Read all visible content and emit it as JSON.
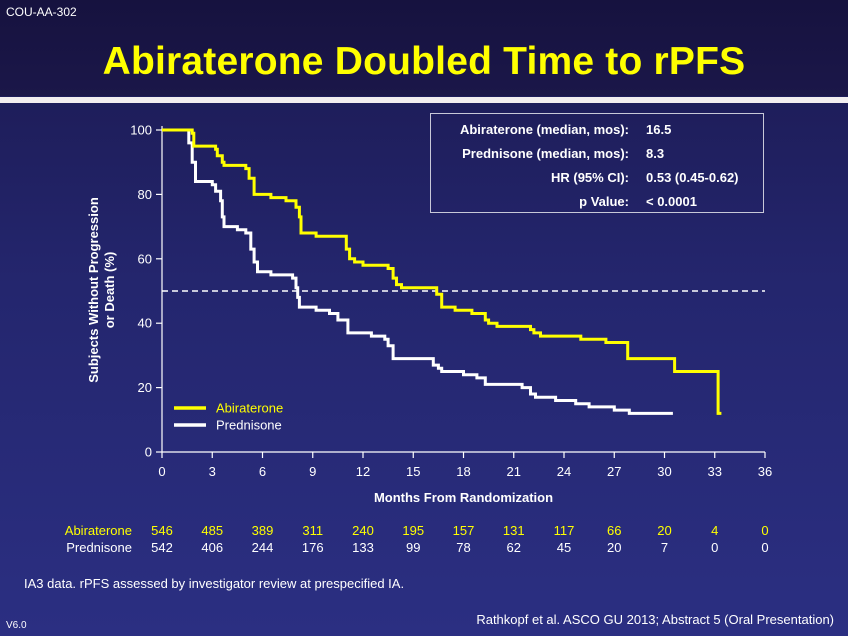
{
  "header": {
    "study_code": "COU-AA-302",
    "title": "Abiraterone Doubled Time to rPFS"
  },
  "stats": [
    {
      "label": "Abiraterone (median, mos):",
      "value": "16.5"
    },
    {
      "label": "Prednisone (median, mos):",
      "value": "8.3"
    },
    {
      "label": "HR (95% CI):",
      "value": "0.53 (0.45-0.62)"
    },
    {
      "label": "p Value:",
      "value": "< 0.0001"
    }
  ],
  "chart_data": {
    "type": "line",
    "title": "",
    "xlabel": "Months From Randomization",
    "ylabel_line1": "Subjects Without Progression",
    "ylabel_line2": "or Death (%)",
    "xlim": [
      0,
      36
    ],
    "ylim": [
      0,
      100
    ],
    "x_ticks": [
      0,
      3,
      6,
      9,
      12,
      15,
      18,
      21,
      24,
      27,
      30,
      33,
      36
    ],
    "y_ticks": [
      0,
      20,
      40,
      60,
      80,
      100
    ],
    "reference_line_y": 50,
    "legend_position": "bottom-left",
    "series": [
      {
        "name": "Abiraterone",
        "color": "#ffff00",
        "step": true,
        "points": [
          [
            0,
            100
          ],
          [
            1.8,
            100
          ],
          [
            1.8,
            99
          ],
          [
            1.9,
            95
          ],
          [
            3.2,
            94
          ],
          [
            3.3,
            92
          ],
          [
            3.6,
            90
          ],
          [
            3.7,
            89
          ],
          [
            5,
            88
          ],
          [
            5.2,
            85
          ],
          [
            5.5,
            80
          ],
          [
            6.5,
            79
          ],
          [
            7.4,
            78
          ],
          [
            8,
            76
          ],
          [
            8.2,
            73
          ],
          [
            8.3,
            68
          ],
          [
            9.2,
            67
          ],
          [
            11,
            66
          ],
          [
            11,
            63
          ],
          [
            11.2,
            60
          ],
          [
            11.5,
            59
          ],
          [
            12,
            58
          ],
          [
            13.5,
            57
          ],
          [
            13.8,
            54
          ],
          [
            14,
            52
          ],
          [
            14.3,
            51
          ],
          [
            16.3,
            51
          ],
          [
            16.4,
            49
          ],
          [
            16.7,
            45
          ],
          [
            17.5,
            44
          ],
          [
            18.5,
            43
          ],
          [
            19.3,
            41
          ],
          [
            19.5,
            40
          ],
          [
            20,
            39
          ],
          [
            22,
            38
          ],
          [
            22.2,
            37
          ],
          [
            22.6,
            36
          ],
          [
            25,
            35
          ],
          [
            26.5,
            34
          ],
          [
            27.7,
            34
          ],
          [
            27.8,
            29
          ],
          [
            30.5,
            29
          ],
          [
            30.6,
            25
          ],
          [
            33.2,
            25
          ],
          [
            33.2,
            12
          ],
          [
            33.4,
            12
          ]
        ]
      },
      {
        "name": "Prednisone",
        "color": "#ffffff",
        "step": true,
        "points": [
          [
            0,
            100
          ],
          [
            1.5,
            100
          ],
          [
            1.6,
            96
          ],
          [
            1.8,
            90
          ],
          [
            2,
            84
          ],
          [
            3,
            83
          ],
          [
            3.2,
            81
          ],
          [
            3.5,
            78
          ],
          [
            3.6,
            73
          ],
          [
            3.7,
            70
          ],
          [
            4.5,
            69
          ],
          [
            5,
            68
          ],
          [
            5.3,
            63
          ],
          [
            5.5,
            59
          ],
          [
            5.7,
            56
          ],
          [
            6.5,
            55
          ],
          [
            7.8,
            54
          ],
          [
            8,
            51
          ],
          [
            8.1,
            48
          ],
          [
            8.2,
            45
          ],
          [
            9.2,
            44
          ],
          [
            10,
            43
          ],
          [
            10.5,
            41
          ],
          [
            11.1,
            37
          ],
          [
            12.5,
            36
          ],
          [
            13.3,
            35
          ],
          [
            13.5,
            33
          ],
          [
            13.8,
            29
          ],
          [
            16,
            29
          ],
          [
            16.2,
            27
          ],
          [
            16.5,
            26
          ],
          [
            16.7,
            25
          ],
          [
            18,
            24
          ],
          [
            18.8,
            23
          ],
          [
            19.3,
            21
          ],
          [
            21.5,
            20
          ],
          [
            22,
            18
          ],
          [
            22.3,
            17
          ],
          [
            23.5,
            16
          ],
          [
            24.7,
            15
          ],
          [
            25.5,
            14
          ],
          [
            27,
            13
          ],
          [
            27.9,
            12
          ],
          [
            30.5,
            12
          ]
        ]
      }
    ]
  },
  "risk_table": {
    "times": [
      0,
      3,
      6,
      9,
      12,
      15,
      18,
      21,
      24,
      27,
      30,
      33,
      36
    ],
    "rows": [
      {
        "label": "Abiraterone",
        "color": "#ffff00",
        "values": [
          "546",
          "485",
          "389",
          "311",
          "240",
          "195",
          "157",
          "131",
          "117",
          "66",
          "20",
          "4",
          "0"
        ]
      },
      {
        "label": "Prednisone",
        "color": "#ffffff",
        "values": [
          "542",
          "406",
          "244",
          "176",
          "133",
          "99",
          "78",
          "62",
          "45",
          "20",
          "7",
          "0",
          "0"
        ]
      }
    ]
  },
  "footer": {
    "footnote": "IA3 data. rPFS assessed by investigator review at prespecified IA.",
    "citation": "Rathkopf et al. ASCO GU 2013; Abstract 5 (Oral Presentation)",
    "version": "V6.0"
  }
}
